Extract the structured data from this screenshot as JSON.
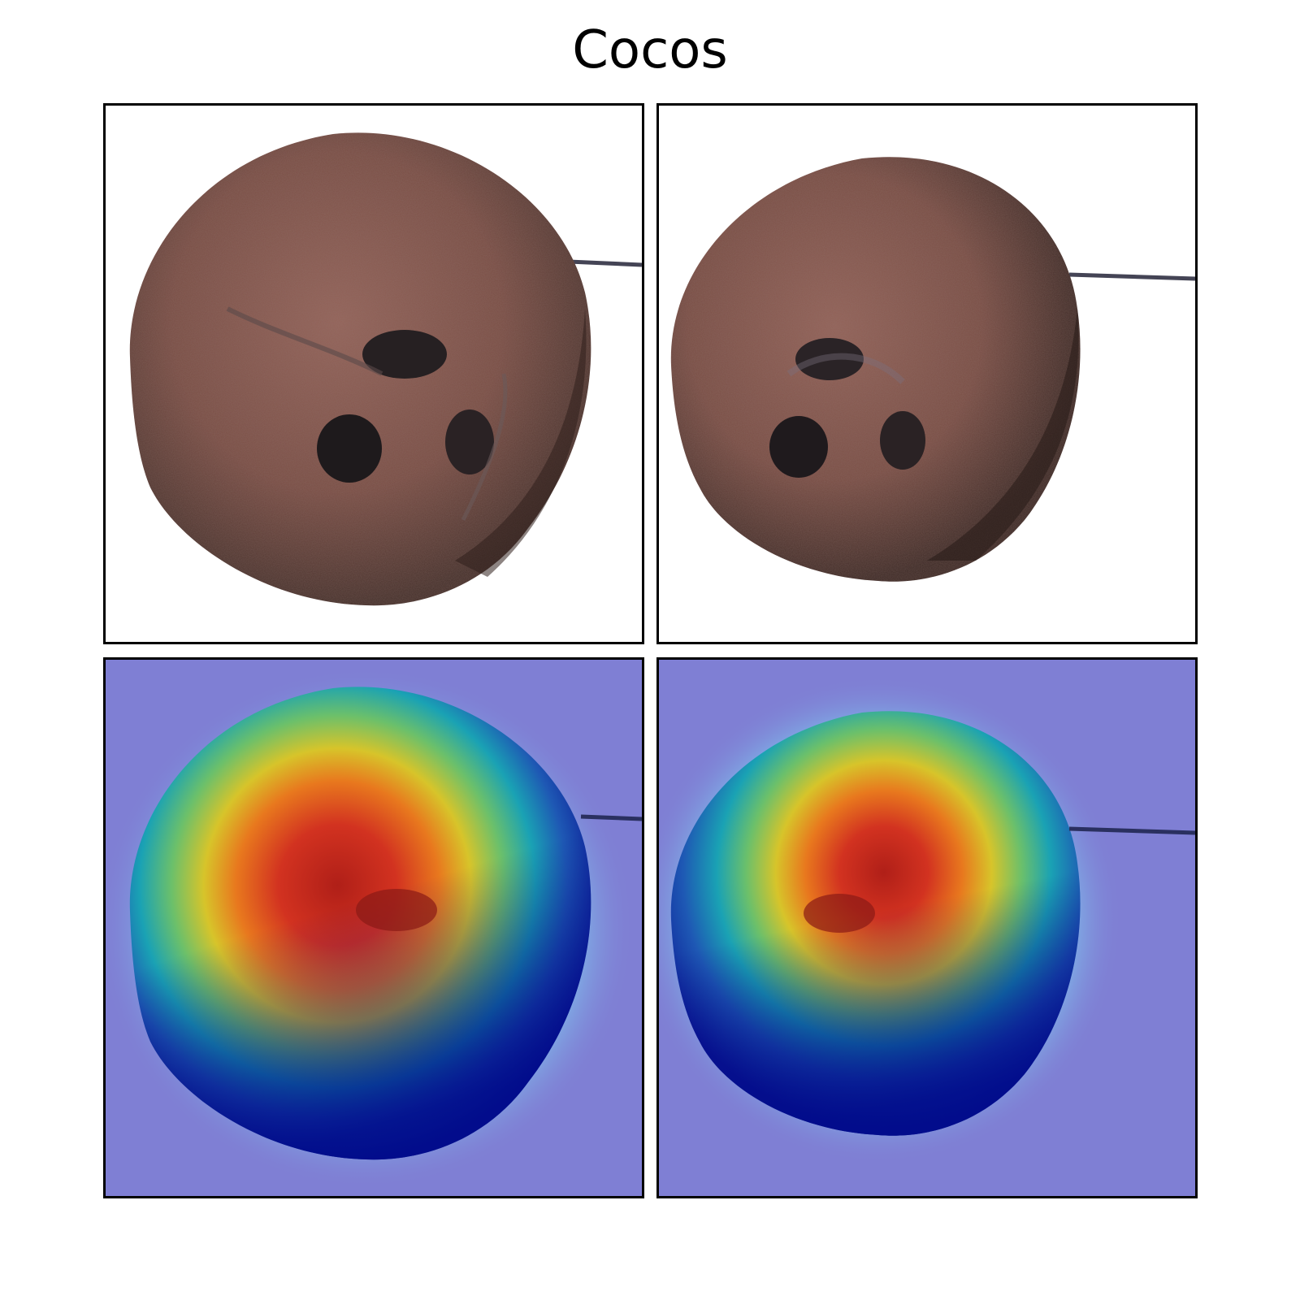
{
  "figure": {
    "title": "Cocos"
  },
  "panels": [
    {
      "name": "original-image-left",
      "type": "photo",
      "subject": "coconut"
    },
    {
      "name": "original-image-right",
      "type": "photo",
      "subject": "coconut"
    },
    {
      "name": "heatmap-overlay-left",
      "type": "attention-heatmap",
      "subject": "coconut",
      "colormap": "jet"
    },
    {
      "name": "heatmap-overlay-right",
      "type": "attention-heatmap",
      "subject": "coconut",
      "colormap": "jet"
    }
  ],
  "colors": {
    "coconut_brown": "#7a4e45",
    "coconut_dark": "#3a2622",
    "heatmap_background": "#7f7fd4",
    "heatmap_hot": "#c0281a",
    "heatmap_cold": "#0a1a9a"
  }
}
